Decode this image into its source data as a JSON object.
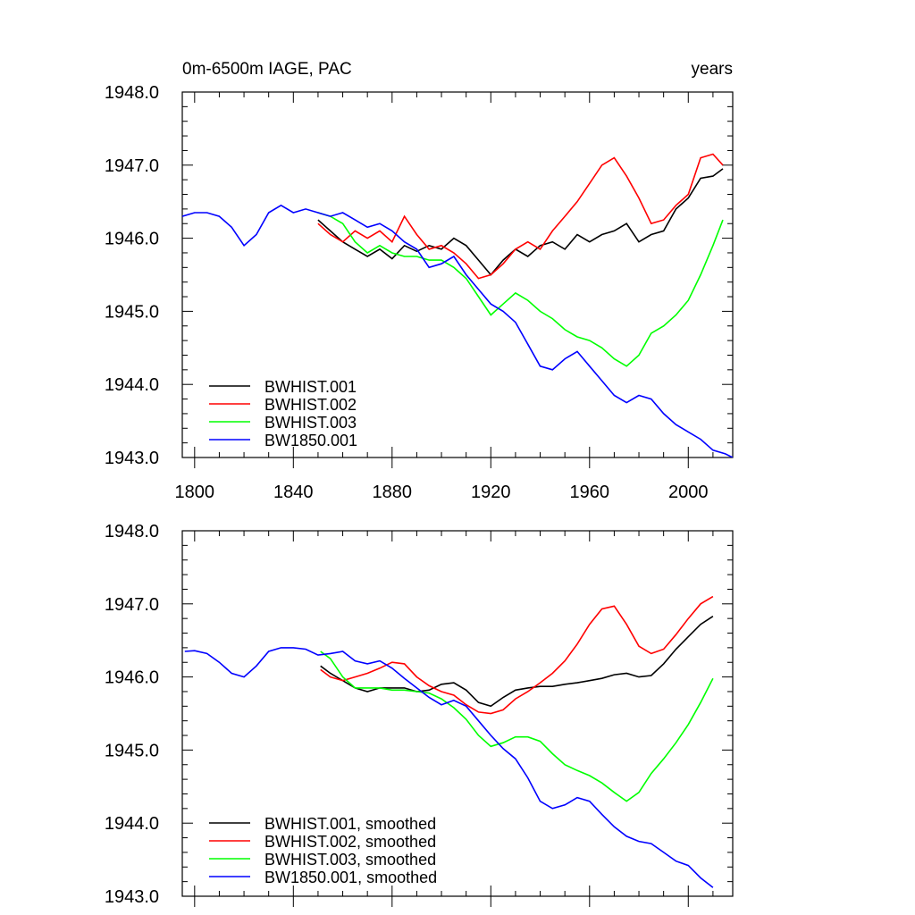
{
  "figure": {
    "title_left": "0m-6500m IAGE, PAC",
    "title_right": "years"
  },
  "chart_data": [
    {
      "type": "line",
      "panel": "top",
      "xlim": [
        1795,
        2018
      ],
      "ylim": [
        1943.0,
        1948.0
      ],
      "xticks": [
        1800,
        1840,
        1880,
        1920,
        1960,
        2000
      ],
      "yticks": [
        1943.0,
        1944.0,
        1945.0,
        1946.0,
        1947.0,
        1948.0
      ],
      "ytick_labels": [
        "1943.0",
        "1944.0",
        "1945.0",
        "1946.0",
        "1947.0",
        "1948.0"
      ],
      "xtick_labels": [
        "1800",
        "1840",
        "1880",
        "1920",
        "1960",
        "2000"
      ],
      "legend_position": "bottom-left",
      "series": [
        {
          "name": "BWHIST.001",
          "color": "#000000",
          "x": [
            1850,
            1855,
            1860,
            1865,
            1870,
            1875,
            1880,
            1885,
            1890,
            1895,
            1900,
            1905,
            1910,
            1915,
            1920,
            1925,
            1930,
            1935,
            1940,
            1945,
            1950,
            1955,
            1960,
            1965,
            1970,
            1975,
            1980,
            1985,
            1990,
            1995,
            2000,
            2005,
            2010,
            2014
          ],
          "values": [
            1946.25,
            1946.1,
            1945.95,
            1945.85,
            1945.75,
            1945.85,
            1945.72,
            1945.9,
            1945.82,
            1945.9,
            1945.85,
            1946.0,
            1945.9,
            1945.7,
            1945.5,
            1945.7,
            1945.85,
            1945.75,
            1945.9,
            1945.95,
            1945.85,
            1946.05,
            1945.95,
            1946.05,
            1946.1,
            1946.2,
            1945.95,
            1946.05,
            1946.1,
            1946.4,
            1946.55,
            1946.82,
            1946.85,
            1946.95
          ]
        },
        {
          "name": "BWHIST.002",
          "color": "#ff0000",
          "x": [
            1850,
            1855,
            1860,
            1865,
            1870,
            1875,
            1880,
            1885,
            1890,
            1895,
            1900,
            1905,
            1910,
            1915,
            1920,
            1925,
            1930,
            1935,
            1940,
            1945,
            1950,
            1955,
            1960,
            1965,
            1970,
            1975,
            1980,
            1985,
            1990,
            1995,
            2000,
            2005,
            2010,
            2014
          ],
          "values": [
            1946.2,
            1946.05,
            1945.95,
            1946.1,
            1946.0,
            1946.1,
            1945.95,
            1946.3,
            1946.05,
            1945.85,
            1945.9,
            1945.8,
            1945.65,
            1945.45,
            1945.5,
            1945.65,
            1945.85,
            1945.95,
            1945.85,
            1946.1,
            1946.3,
            1946.5,
            1946.75,
            1947.0,
            1947.1,
            1946.85,
            1946.55,
            1946.2,
            1946.25,
            1946.45,
            1946.6,
            1947.1,
            1947.15,
            1947.0
          ]
        },
        {
          "name": "BWHIST.003",
          "color": "#00ff00",
          "x": [
            1850,
            1855,
            1860,
            1865,
            1870,
            1875,
            1880,
            1885,
            1890,
            1895,
            1900,
            1905,
            1910,
            1915,
            1920,
            1925,
            1930,
            1935,
            1940,
            1945,
            1950,
            1955,
            1960,
            1965,
            1970,
            1975,
            1980,
            1985,
            1990,
            1995,
            2000,
            2005,
            2010,
            2014
          ],
          "values": [
            1946.35,
            1946.3,
            1946.2,
            1945.95,
            1945.8,
            1945.9,
            1945.8,
            1945.75,
            1945.75,
            1945.7,
            1945.7,
            1945.6,
            1945.45,
            1945.2,
            1944.95,
            1945.1,
            1945.25,
            1945.15,
            1945.0,
            1944.9,
            1944.75,
            1944.65,
            1944.6,
            1944.5,
            1944.35,
            1944.25,
            1944.4,
            1944.7,
            1944.8,
            1944.95,
            1945.15,
            1945.5,
            1945.9,
            1946.25
          ]
        },
        {
          "name": "BW1850.001",
          "color": "#0000ff",
          "x": [
            1795,
            1800,
            1805,
            1810,
            1815,
            1820,
            1825,
            1830,
            1835,
            1840,
            1845,
            1850,
            1855,
            1860,
            1865,
            1870,
            1875,
            1880,
            1885,
            1890,
            1895,
            1900,
            1905,
            1910,
            1915,
            1920,
            1925,
            1930,
            1935,
            1940,
            1945,
            1950,
            1955,
            1960,
            1965,
            1970,
            1975,
            1980,
            1985,
            1990,
            1995,
            2000,
            2005,
            2010,
            2015,
            2018
          ],
          "values": [
            1946.3,
            1946.35,
            1946.35,
            1946.3,
            1946.15,
            1945.9,
            1946.05,
            1946.35,
            1946.45,
            1946.35,
            1946.4,
            1946.35,
            1946.3,
            1946.35,
            1946.25,
            1946.15,
            1946.2,
            1946.1,
            1945.95,
            1945.85,
            1945.6,
            1945.65,
            1945.75,
            1945.5,
            1945.3,
            1945.1,
            1945.0,
            1944.85,
            1944.55,
            1944.25,
            1944.2,
            1944.35,
            1944.45,
            1944.25,
            1944.05,
            1943.85,
            1943.75,
            1943.85,
            1943.8,
            1943.6,
            1943.45,
            1943.35,
            1943.25,
            1943.1,
            1943.05,
            1943.0
          ]
        }
      ]
    },
    {
      "type": "line",
      "panel": "bottom",
      "xlim": [
        1795,
        2018
      ],
      "ylim": [
        1943.0,
        1948.0
      ],
      "xticks": [
        1800,
        1840,
        1880,
        1920,
        1960,
        2000
      ],
      "yticks": [
        1943.0,
        1944.0,
        1945.0,
        1946.0,
        1947.0,
        1948.0
      ],
      "ytick_labels": [
        "1943.0",
        "1944.0",
        "1945.0",
        "1946.0",
        "1947.0",
        "1948.0"
      ],
      "legend_position": "bottom-left",
      "series": [
        {
          "name": "BWHIST.001, smoothed",
          "color": "#000000",
          "x": [
            1851,
            1855,
            1860,
            1865,
            1870,
            1875,
            1880,
            1885,
            1890,
            1895,
            1900,
            1905,
            1910,
            1915,
            1920,
            1925,
            1930,
            1935,
            1940,
            1945,
            1950,
            1955,
            1960,
            1965,
            1970,
            1975,
            1980,
            1985,
            1990,
            1995,
            2000,
            2005,
            2010
          ],
          "values": [
            1946.15,
            1946.05,
            1945.95,
            1945.85,
            1945.8,
            1945.85,
            1945.85,
            1945.85,
            1945.8,
            1945.82,
            1945.9,
            1945.92,
            1945.82,
            1945.65,
            1945.6,
            1945.72,
            1945.82,
            1945.85,
            1945.87,
            1945.87,
            1945.9,
            1945.92,
            1945.95,
            1945.98,
            1946.03,
            1946.05,
            1946.0,
            1946.02,
            1946.18,
            1946.38,
            1946.55,
            1946.72,
            1946.83
          ]
        },
        {
          "name": "BWHIST.002, smoothed",
          "color": "#ff0000",
          "x": [
            1851,
            1855,
            1860,
            1865,
            1870,
            1875,
            1880,
            1885,
            1890,
            1895,
            1900,
            1905,
            1910,
            1915,
            1920,
            1925,
            1930,
            1935,
            1940,
            1945,
            1950,
            1955,
            1960,
            1965,
            1970,
            1975,
            1980,
            1985,
            1990,
            1995,
            2000,
            2005,
            2010
          ],
          "values": [
            1946.1,
            1946.0,
            1945.95,
            1946.0,
            1946.05,
            1946.12,
            1946.2,
            1946.18,
            1946.0,
            1945.88,
            1945.8,
            1945.75,
            1945.62,
            1945.52,
            1945.5,
            1945.55,
            1945.7,
            1945.8,
            1945.92,
            1946.05,
            1946.22,
            1946.45,
            1946.72,
            1946.93,
            1946.97,
            1946.72,
            1946.42,
            1946.32,
            1946.38,
            1946.58,
            1946.8,
            1947.0,
            1947.1
          ]
        },
        {
          "name": "BWHIST.003, smoothed",
          "color": "#00ff00",
          "x": [
            1851,
            1855,
            1860,
            1865,
            1870,
            1875,
            1880,
            1885,
            1890,
            1895,
            1900,
            1905,
            1910,
            1915,
            1920,
            1925,
            1930,
            1935,
            1940,
            1945,
            1950,
            1955,
            1960,
            1965,
            1970,
            1975,
            1980,
            1985,
            1990,
            1995,
            2000,
            2005,
            2010
          ],
          "values": [
            1946.35,
            1946.25,
            1946.0,
            1945.85,
            1945.85,
            1945.85,
            1945.82,
            1945.82,
            1945.8,
            1945.78,
            1945.7,
            1945.58,
            1945.42,
            1945.2,
            1945.05,
            1945.1,
            1945.18,
            1945.18,
            1945.12,
            1944.95,
            1944.8,
            1944.72,
            1944.65,
            1944.55,
            1944.42,
            1944.3,
            1944.42,
            1944.68,
            1944.88,
            1945.1,
            1945.35,
            1945.65,
            1945.98
          ]
        },
        {
          "name": "BW1850.001, smoothed",
          "color": "#0000ff",
          "x": [
            1796,
            1800,
            1805,
            1810,
            1815,
            1820,
            1825,
            1830,
            1835,
            1840,
            1845,
            1850,
            1855,
            1860,
            1865,
            1870,
            1875,
            1880,
            1885,
            1890,
            1895,
            1900,
            1905,
            1910,
            1915,
            1920,
            1925,
            1930,
            1935,
            1940,
            1945,
            1950,
            1955,
            1960,
            1965,
            1970,
            1975,
            1980,
            1985,
            1990,
            1995,
            2000,
            2005,
            2010
          ],
          "values": [
            1946.35,
            1946.36,
            1946.32,
            1946.2,
            1946.05,
            1946.0,
            1946.15,
            1946.35,
            1946.4,
            1946.4,
            1946.38,
            1946.3,
            1946.32,
            1946.35,
            1946.22,
            1946.18,
            1946.22,
            1946.12,
            1945.98,
            1945.85,
            1945.72,
            1945.62,
            1945.68,
            1945.6,
            1945.4,
            1945.2,
            1945.02,
            1944.88,
            1944.62,
            1944.3,
            1944.2,
            1944.25,
            1944.35,
            1944.3,
            1944.12,
            1943.95,
            1943.82,
            1943.75,
            1943.72,
            1943.6,
            1943.48,
            1943.42,
            1943.25,
            1943.12
          ]
        }
      ]
    }
  ]
}
